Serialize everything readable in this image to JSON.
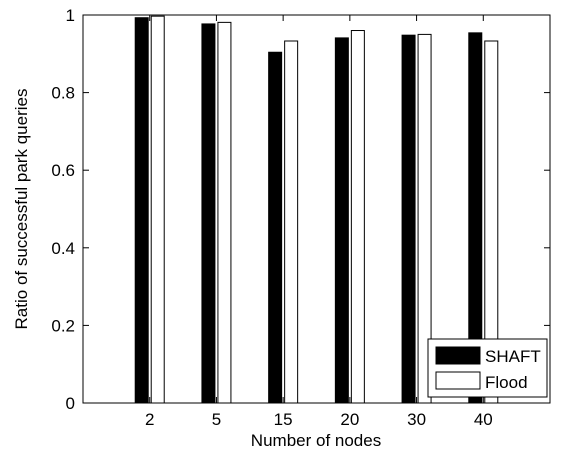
{
  "chart_data": {
    "type": "bar",
    "categories": [
      "2",
      "5",
      "15",
      "20",
      "30",
      "40"
    ],
    "series": [
      {
        "name": "SHAFT",
        "values": [
          0.993,
          0.977,
          0.904,
          0.941,
          0.948,
          0.954
        ],
        "color": "#000000"
      },
      {
        "name": "Flood",
        "values": [
          0.997,
          0.981,
          0.933,
          0.96,
          0.95,
          0.933
        ],
        "color": "#ffffff"
      }
    ],
    "xlabel": "Number of nodes",
    "ylabel": "Ratio of successful park queries",
    "ylim": [
      0,
      1
    ],
    "yticks": [
      0,
      0.2,
      0.4,
      0.6,
      0.8,
      1
    ],
    "ytick_labels": [
      "0",
      "0.2",
      "0.4",
      "0.6",
      "0.8",
      "1"
    ],
    "x_range": [
      0,
      7
    ],
    "grid": false,
    "legend_position": "bottom-right"
  }
}
